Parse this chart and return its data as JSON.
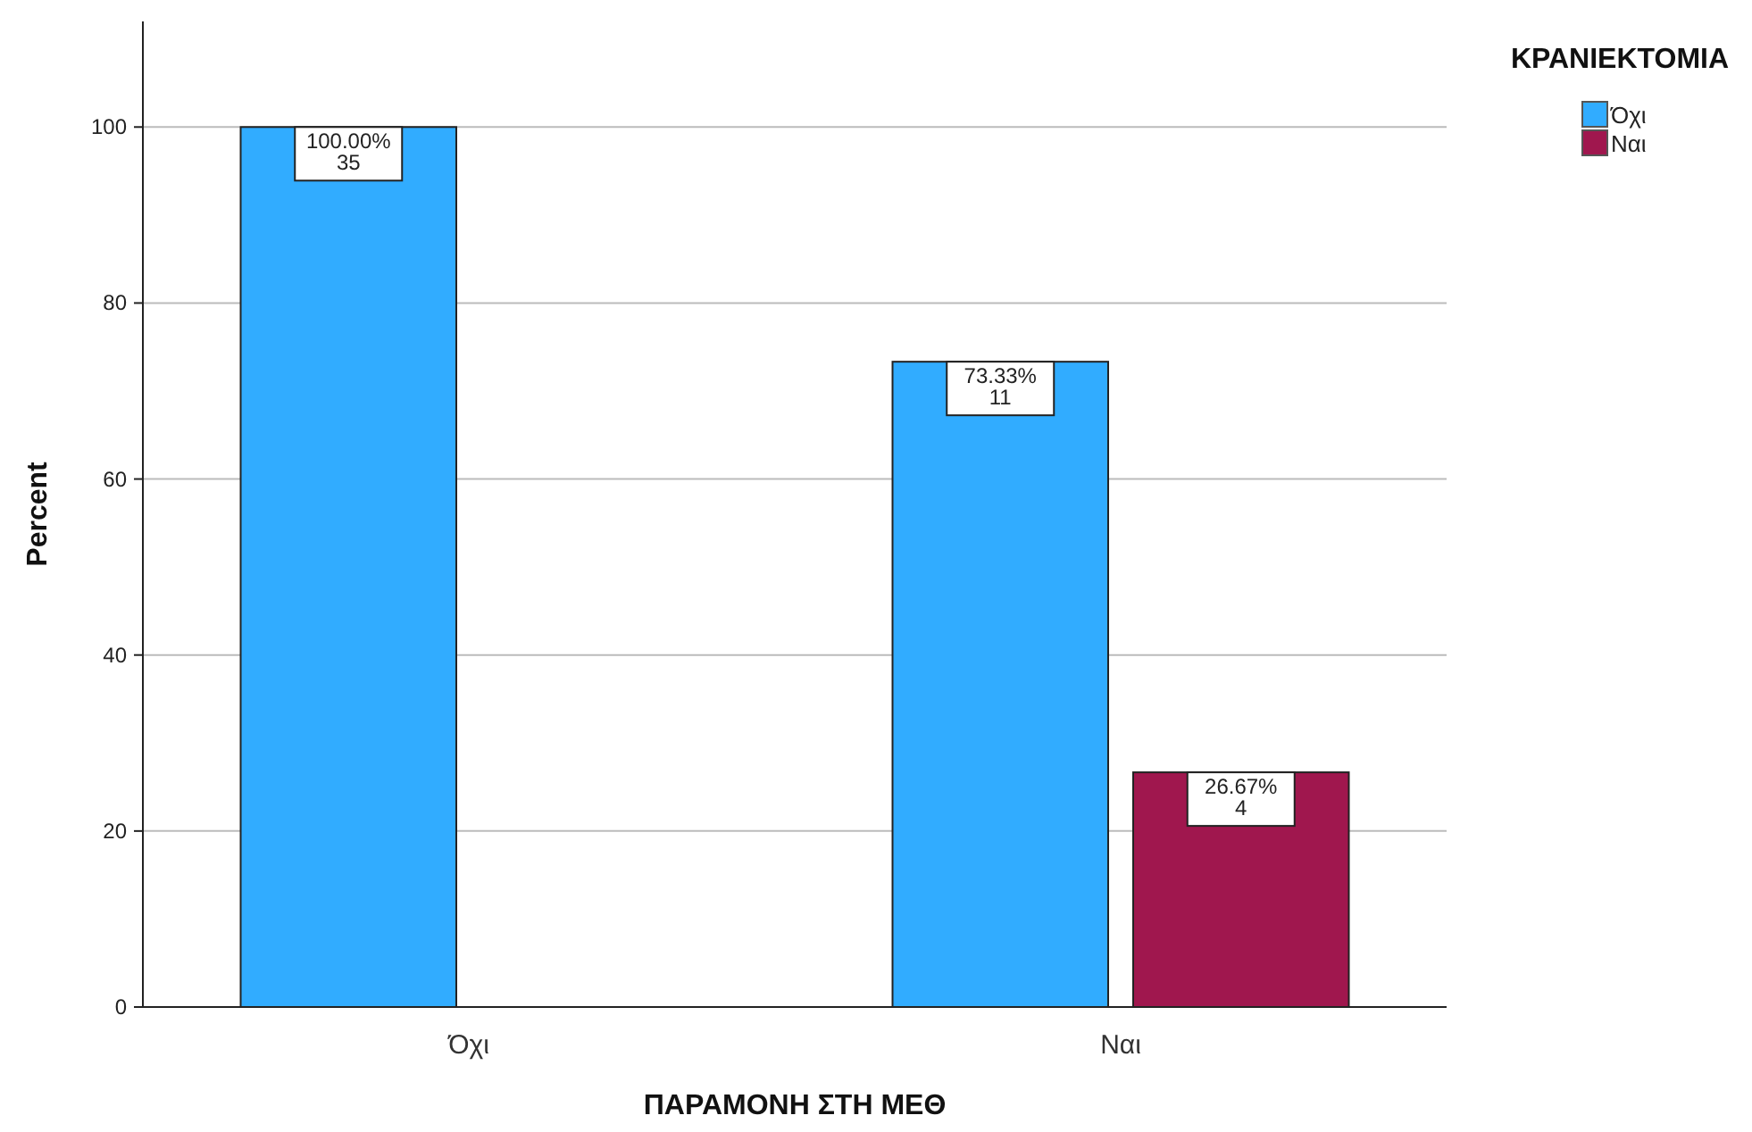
{
  "chart_data": {
    "type": "bar",
    "xlabel": "ΠΑΡΑΜΟΝΗ ΣΤΗ ΜΕΘ",
    "ylabel": "Percent",
    "legend_title": "ΚΡΑΝΙΕΚΤΟΜΙΑ",
    "categories": [
      "Όχι",
      "Ναι"
    ],
    "series": [
      {
        "name": "Όχι",
        "color": "#31acff",
        "values": [
          100,
          73.33
        ],
        "value_labels": [
          "100.00%\n35",
          "73.33%\n11"
        ]
      },
      {
        "name": "Ναι",
        "color": "#a0174e",
        "values": [
          null,
          26.67
        ],
        "value_labels": [
          null,
          "26.67%\n4"
        ]
      }
    ],
    "ylim": [
      0,
      112
    ],
    "yticks": [
      0,
      20,
      40,
      60,
      80,
      100
    ],
    "grid": "y",
    "legend": "top right"
  }
}
